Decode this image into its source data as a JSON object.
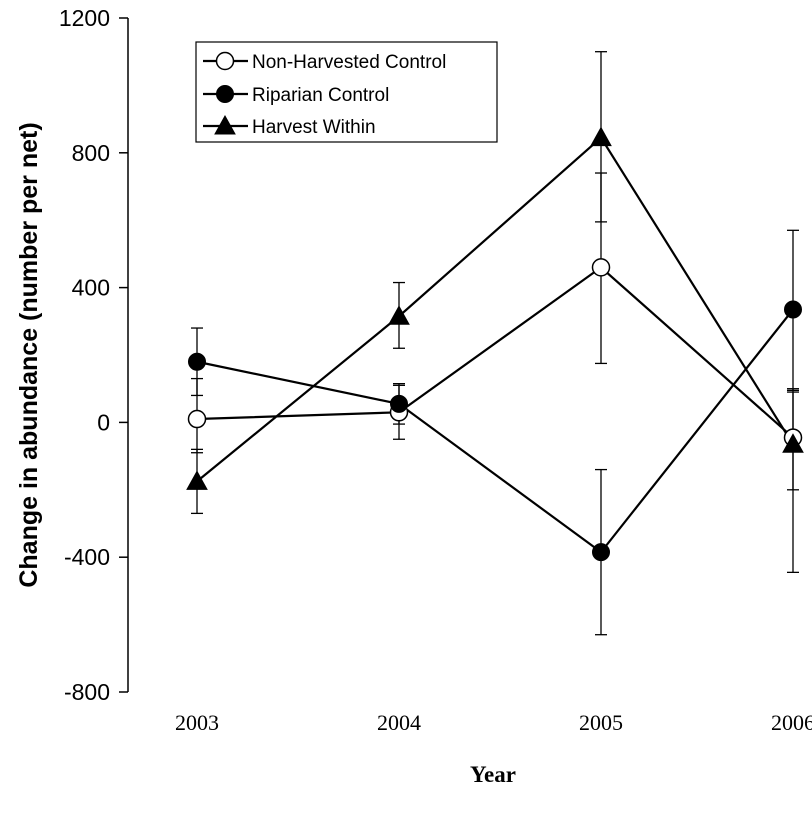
{
  "chart_data": {
    "type": "line",
    "title": "",
    "xlabel": "Year",
    "ylabel": "Change in abundance (number per net)",
    "categories": [
      "2003",
      "2004",
      "2005",
      "2006"
    ],
    "ylim": [
      -800,
      1200
    ],
    "yticks": [
      -800,
      -400,
      0,
      400,
      800,
      1200
    ],
    "grid": false,
    "legend_position": "top-left",
    "series": [
      {
        "name": "Non-Harvested Control",
        "marker": "circle-open",
        "values": [
          10,
          30,
          460,
          -45
        ],
        "err_upper": [
          130,
          110,
          740,
          100
        ],
        "err_lower": [
          -90,
          -50,
          175,
          -200
        ]
      },
      {
        "name": "Riparian Control",
        "marker": "circle-filled",
        "values": [
          180,
          55,
          -385,
          335
        ],
        "err_upper": [
          280,
          115,
          -140,
          570
        ],
        "err_lower": [
          80,
          -5,
          -630,
          95
        ]
      },
      {
        "name": "Harvest Within",
        "marker": "triangle-filled",
        "values": [
          -175,
          315,
          845,
          -65
        ],
        "err_upper": [
          -80,
          415,
          1100,
          90
        ],
        "err_lower": [
          -270,
          220,
          595,
          -445
        ]
      }
    ]
  }
}
